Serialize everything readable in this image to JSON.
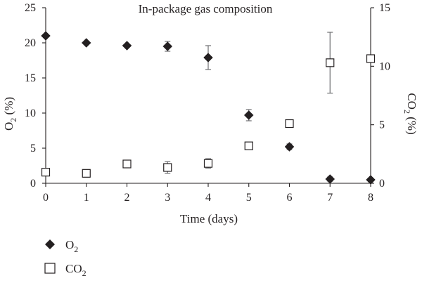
{
  "chart_data": {
    "type": "scatter",
    "title": "In-package gas composition",
    "xlabel": "Time (days)",
    "ylabel_left": {
      "main": "O",
      "sub": "2",
      "unit": " (%)"
    },
    "ylabel_right": {
      "main": "CO",
      "sub": "2",
      "unit": " (%)"
    },
    "xlim": [
      0,
      8
    ],
    "ylim_left": [
      0,
      25
    ],
    "ylim_right": [
      0,
      15
    ],
    "x_ticks": [
      "0",
      "1",
      "2",
      "3",
      "4",
      "5",
      "6",
      "7",
      "8"
    ],
    "y_left_ticks": [
      "0",
      "5",
      "10",
      "15",
      "20",
      "25"
    ],
    "y_right_ticks": [
      "0",
      "5",
      "10",
      "15"
    ],
    "grid": false,
    "legend_position": "bottom-left",
    "series": [
      {
        "name": {
          "main": "O",
          "sub": "2"
        },
        "axis": "left",
        "marker": "filled-diamond",
        "color": "#231f20",
        "points": [
          {
            "x": 0,
            "y": 21.0,
            "err": 0
          },
          {
            "x": 1,
            "y": 20.0,
            "err": 0
          },
          {
            "x": 2,
            "y": 19.6,
            "err": 0
          },
          {
            "x": 3,
            "y": 19.5,
            "err": 0.7
          },
          {
            "x": 4,
            "y": 17.9,
            "err": 1.7
          },
          {
            "x": 5,
            "y": 9.7,
            "err": 0.8
          },
          {
            "x": 6,
            "y": 5.2,
            "err": 0.4
          },
          {
            "x": 7,
            "y": 0.6,
            "err": 0.3
          },
          {
            "x": 8,
            "y": 0.5,
            "err": 0
          }
        ]
      },
      {
        "name": {
          "main": "CO",
          "sub": "2"
        },
        "axis": "right",
        "marker": "open-square",
        "color": "#231f20",
        "points": [
          {
            "x": 0,
            "y": 0.95,
            "err": 0
          },
          {
            "x": 1,
            "y": 0.85,
            "err": 0.2
          },
          {
            "x": 2,
            "y": 1.65,
            "err": 0.2
          },
          {
            "x": 3,
            "y": 1.35,
            "err": 0.5
          },
          {
            "x": 4,
            "y": 1.7,
            "err": 0.4
          },
          {
            "x": 5,
            "y": 3.2,
            "err": 0.2
          },
          {
            "x": 6,
            "y": 5.1,
            "err": 0.3
          },
          {
            "x": 7,
            "y": 10.3,
            "err": 2.6
          },
          {
            "x": 8,
            "y": 10.65,
            "err": 0
          }
        ]
      }
    ]
  }
}
